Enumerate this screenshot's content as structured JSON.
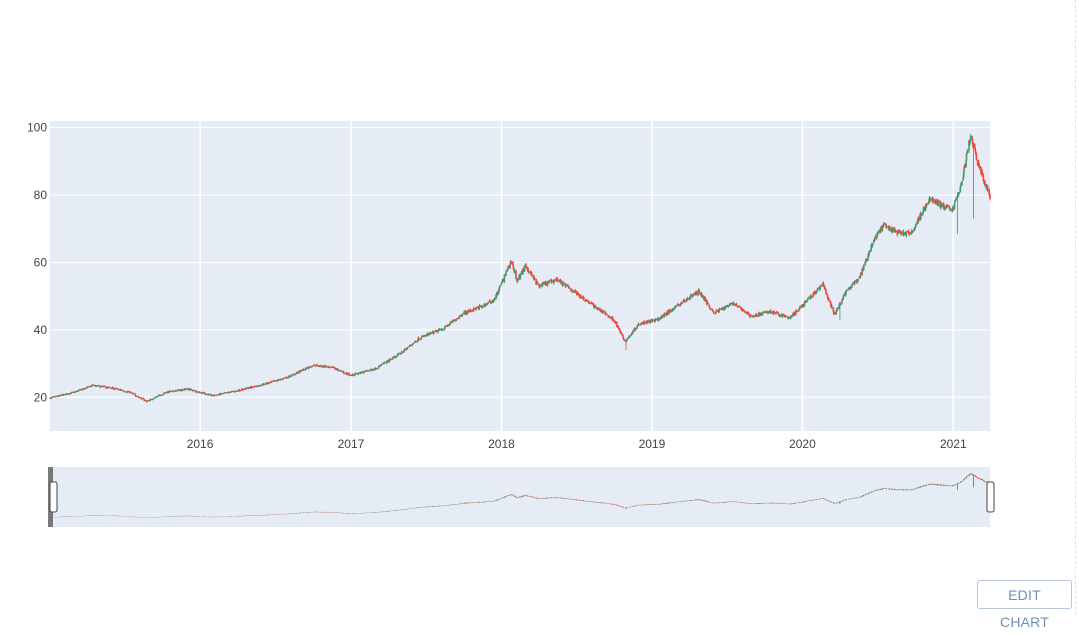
{
  "edit_button": {
    "label": "EDIT CHART"
  },
  "colors": {
    "plot_background": "#e5ecf6",
    "increasing": "#3d9970",
    "decreasing": "#ff4136",
    "grid": "#ffffff",
    "tick_text": "#444444"
  },
  "chart_data": {
    "type": "candlestick",
    "title": "",
    "xlabel": "",
    "ylabel": "",
    "xrange": [
      "2015-01-02",
      "2021-03-31"
    ],
    "yrange": [
      10,
      102
    ],
    "yticks": [
      20,
      40,
      60,
      80,
      100
    ],
    "xticks": [
      "2016",
      "2017",
      "2018",
      "2019",
      "2020",
      "2021"
    ],
    "rangeslider": true,
    "legend": "none",
    "grid": true,
    "anchors": [
      [
        "2015-01-02",
        19.8
      ],
      [
        "2015-03-01",
        21.5
      ],
      [
        "2015-04-15",
        23.5
      ],
      [
        "2015-06-01",
        22.8
      ],
      [
        "2015-07-15",
        21.5
      ],
      [
        "2015-08-25",
        18.8
      ],
      [
        "2015-10-10",
        21.5
      ],
      [
        "2015-12-01",
        22.5
      ],
      [
        "2016-02-01",
        20.5
      ],
      [
        "2016-04-01",
        22.0
      ],
      [
        "2016-06-01",
        23.8
      ],
      [
        "2016-08-01",
        26.0
      ],
      [
        "2016-10-01",
        29.5
      ],
      [
        "2016-11-15",
        29.0
      ],
      [
        "2017-01-01",
        26.5
      ],
      [
        "2017-03-01",
        28.5
      ],
      [
        "2017-05-01",
        33.0
      ],
      [
        "2017-06-15",
        37.5
      ],
      [
        "2017-08-15",
        40.5
      ],
      [
        "2017-10-01",
        45.0
      ],
      [
        "2017-11-15",
        47.0
      ],
      [
        "2017-12-15",
        49.0
      ],
      [
        "2018-01-25",
        60.5
      ],
      [
        "2018-02-08",
        54.5
      ],
      [
        "2018-03-01",
        59.0
      ],
      [
        "2018-04-01",
        53.0
      ],
      [
        "2018-05-15",
        55.0
      ],
      [
        "2018-07-01",
        51.0
      ],
      [
        "2018-08-15",
        47.0
      ],
      [
        "2018-10-01",
        43.0
      ],
      [
        "2018-10-28",
        36.5
      ],
      [
        "2018-12-01",
        42.0
      ],
      [
        "2019-01-15",
        43.0
      ],
      [
        "2019-03-01",
        47.0
      ],
      [
        "2019-04-25",
        51.5
      ],
      [
        "2019-06-01",
        45.0
      ],
      [
        "2019-07-15",
        48.0
      ],
      [
        "2019-09-01",
        44.0
      ],
      [
        "2019-10-15",
        45.5
      ],
      [
        "2019-12-01",
        43.5
      ],
      [
        "2020-01-15",
        49.0
      ],
      [
        "2020-02-20",
        53.5
      ],
      [
        "2020-03-18",
        44.5
      ],
      [
        "2020-04-15",
        51.0
      ],
      [
        "2020-05-20",
        56.0
      ],
      [
        "2020-06-20",
        66.0
      ],
      [
        "2020-07-15",
        71.0
      ],
      [
        "2020-08-15",
        69.0
      ],
      [
        "2020-09-20",
        68.5
      ],
      [
        "2020-10-10",
        73.0
      ],
      [
        "2020-11-05",
        79.0
      ],
      [
        "2020-12-10",
        76.5
      ],
      [
        "2021-01-01",
        76.0
      ],
      [
        "2021-01-22",
        84.0
      ],
      [
        "2021-02-05",
        94.0
      ],
      [
        "2021-02-12",
        97.5
      ],
      [
        "2021-03-01",
        90.0
      ],
      [
        "2021-03-31",
        79.5
      ]
    ],
    "spikes": [
      [
        "2021-01-10",
        68.5
      ],
      [
        "2021-02-20",
        73.0
      ],
      [
        "2020-04-01",
        43.0
      ],
      [
        "2018-10-30",
        34.0
      ]
    ]
  }
}
